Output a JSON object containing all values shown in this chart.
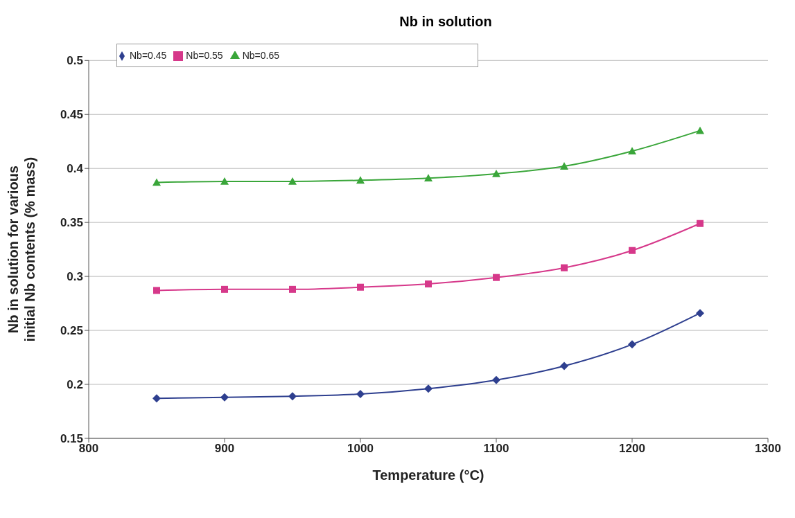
{
  "chart_data": {
    "type": "line",
    "title": "Nb in solution",
    "xlabel": "Temperature (°C)",
    "ylabel": "Nb in solution for various\ninitial Nb contents (% mass)",
    "x": [
      850,
      900,
      950,
      1000,
      1050,
      1100,
      1150,
      1200,
      1250
    ],
    "series": [
      {
        "name": "Nb=0.45",
        "color": "#2e3f8f",
        "marker": "diamond",
        "values": [
          0.187,
          0.188,
          0.189,
          0.191,
          0.196,
          0.204,
          0.217,
          0.237,
          0.266
        ]
      },
      {
        "name": "Nb=0.55",
        "color": "#d6388a",
        "marker": "square",
        "values": [
          0.287,
          0.288,
          0.288,
          0.29,
          0.293,
          0.299,
          0.308,
          0.324,
          0.349
        ]
      },
      {
        "name": "Nb=0.65",
        "color": "#3aa63a",
        "marker": "triangle",
        "values": [
          0.387,
          0.388,
          0.388,
          0.389,
          0.391,
          0.395,
          0.402,
          0.416,
          0.435
        ]
      }
    ],
    "xlim": [
      800,
      1300
    ],
    "xticks": [
      800,
      900,
      1000,
      1100,
      1200,
      1300
    ],
    "ylim": [
      0.15,
      0.5
    ],
    "yticks": [
      0.15,
      0.2,
      0.25,
      0.3,
      0.35,
      0.4,
      0.45,
      0.5
    ],
    "grid": "y",
    "legend": "top left",
    "line_style": "solid"
  }
}
